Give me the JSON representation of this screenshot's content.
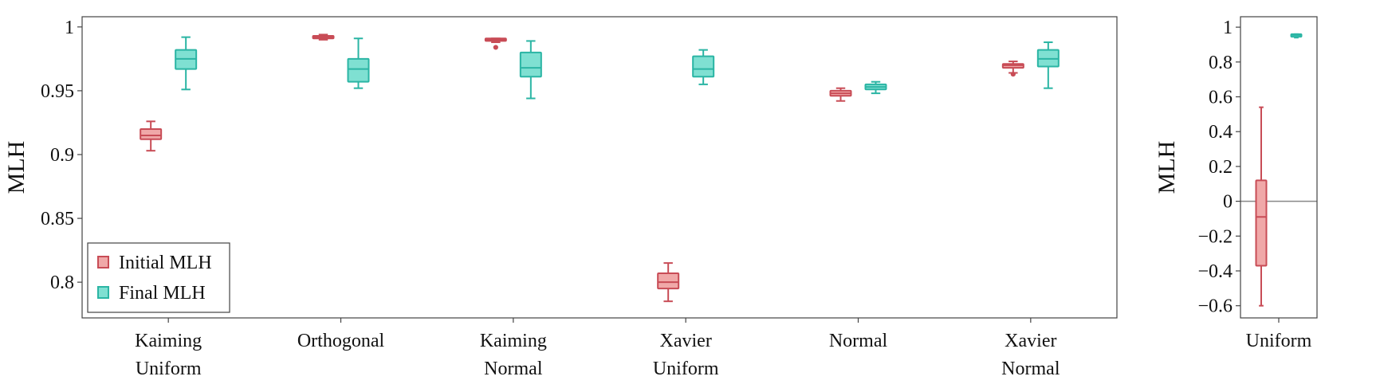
{
  "colors": {
    "initial_fill": "#f0a8a8",
    "initial_edge": "#c84c56",
    "final_fill": "#7fe0d2",
    "final_edge": "#2bb5a4",
    "axis": "#444444",
    "zero_line": "#888888"
  },
  "chart_data": [
    {
      "type": "box",
      "ylabel": "MLH",
      "ylim": [
        0.772,
        1.008
      ],
      "yticks": [
        0.8,
        0.85,
        0.9,
        0.95,
        1
      ],
      "ytick_labels": [
        "0.8",
        "0.85",
        "0.9",
        "0.95",
        "1"
      ],
      "categories": [
        {
          "lines": [
            "Kaiming",
            "Uniform"
          ]
        },
        {
          "lines": [
            "Orthogonal"
          ]
        },
        {
          "lines": [
            "Kaiming",
            "Normal"
          ]
        },
        {
          "lines": [
            "Xavier",
            "Uniform"
          ]
        },
        {
          "lines": [
            "Normal"
          ]
        },
        {
          "lines": [
            "Xavier",
            "Normal"
          ]
        }
      ],
      "legend": {
        "position": "lower-left",
        "entries": [
          "Initial MLH",
          "Final MLH"
        ]
      },
      "series": [
        {
          "name": "Initial MLH",
          "boxes": [
            {
              "whislo": 0.903,
              "q1": 0.912,
              "med": 0.915,
              "q3": 0.92,
              "whishi": 0.926,
              "fliers": []
            },
            {
              "whislo": 0.99,
              "q1": 0.991,
              "med": 0.992,
              "q3": 0.993,
              "whishi": 0.994,
              "fliers": []
            },
            {
              "whislo": 0.988,
              "q1": 0.989,
              "med": 0.99,
              "q3": 0.991,
              "whishi": 0.991,
              "fliers": [
                0.984
              ]
            },
            {
              "whislo": 0.785,
              "q1": 0.795,
              "med": 0.8,
              "q3": 0.807,
              "whishi": 0.815,
              "fliers": []
            },
            {
              "whislo": 0.942,
              "q1": 0.946,
              "med": 0.948,
              "q3": 0.95,
              "whishi": 0.952,
              "fliers": []
            },
            {
              "whislo": 0.964,
              "q1": 0.968,
              "med": 0.97,
              "q3": 0.971,
              "whishi": 0.973,
              "fliers": [
                0.963
              ]
            }
          ]
        },
        {
          "name": "Final MLH",
          "boxes": [
            {
              "whislo": 0.951,
              "q1": 0.967,
              "med": 0.975,
              "q3": 0.982,
              "whishi": 0.992,
              "fliers": []
            },
            {
              "whislo": 0.952,
              "q1": 0.957,
              "med": 0.967,
              "q3": 0.975,
              "whishi": 0.991,
              "fliers": []
            },
            {
              "whislo": 0.944,
              "q1": 0.961,
              "med": 0.968,
              "q3": 0.98,
              "whishi": 0.989,
              "fliers": []
            },
            {
              "whislo": 0.955,
              "q1": 0.961,
              "med": 0.967,
              "q3": 0.977,
              "whishi": 0.982,
              "fliers": []
            },
            {
              "whislo": 0.948,
              "q1": 0.951,
              "med": 0.953,
              "q3": 0.955,
              "whishi": 0.957,
              "fliers": []
            },
            {
              "whislo": 0.952,
              "q1": 0.969,
              "med": 0.975,
              "q3": 0.982,
              "whishi": 0.988,
              "fliers": []
            }
          ]
        }
      ]
    },
    {
      "type": "box",
      "ylabel": "MLH",
      "ylim": [
        -0.67,
        1.06
      ],
      "yticks": [
        -0.6,
        -0.4,
        -0.2,
        0,
        0.2,
        0.4,
        0.6,
        0.8,
        1
      ],
      "ytick_labels": [
        "−0.6",
        "−0.4",
        "−0.2",
        "0",
        "0.2",
        "0.4",
        "0.6",
        "0.8",
        "1"
      ],
      "zero_line": 0,
      "categories": [
        {
          "lines": [
            "Uniform"
          ]
        }
      ],
      "series": [
        {
          "name": "Initial MLH",
          "boxes": [
            {
              "whislo": -0.6,
              "q1": -0.37,
              "med": -0.09,
              "q3": 0.12,
              "whishi": 0.54,
              "fliers": []
            }
          ]
        },
        {
          "name": "Final MLH",
          "boxes": [
            {
              "whislo": 0.94,
              "q1": 0.945,
              "med": 0.955,
              "q3": 0.96,
              "whishi": 0.96,
              "fliers": []
            }
          ]
        }
      ]
    }
  ]
}
